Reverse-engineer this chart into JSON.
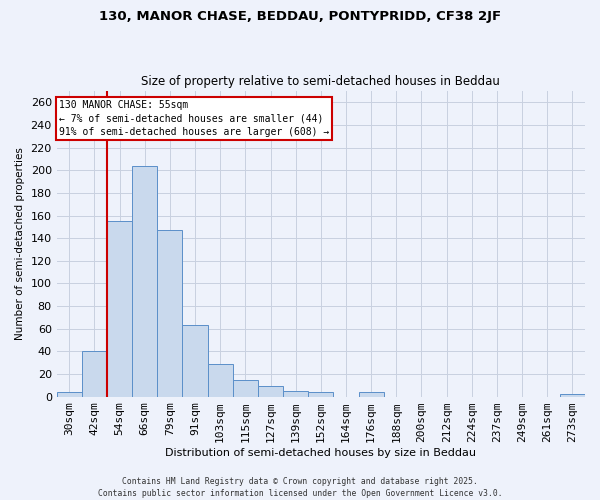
{
  "title": "130, MANOR CHASE, BEDDAU, PONTYPRIDD, CF38 2JF",
  "subtitle": "Size of property relative to semi-detached houses in Beddau",
  "xlabel": "Distribution of semi-detached houses by size in Beddau",
  "ylabel": "Number of semi-detached properties",
  "categories": [
    "30sqm",
    "42sqm",
    "54sqm",
    "66sqm",
    "79sqm",
    "91sqm",
    "103sqm",
    "115sqm",
    "127sqm",
    "139sqm",
    "152sqm",
    "164sqm",
    "176sqm",
    "188sqm",
    "200sqm",
    "212sqm",
    "224sqm",
    "237sqm",
    "249sqm",
    "261sqm",
    "273sqm"
  ],
  "values": [
    4,
    40,
    155,
    204,
    147,
    63,
    29,
    15,
    9,
    5,
    4,
    0,
    4,
    0,
    0,
    0,
    0,
    0,
    0,
    0,
    2
  ],
  "bar_color": "#c9d9ed",
  "bar_edge_color": "#5b8fc9",
  "grid_color": "#c8d0e0",
  "background_color": "#eef2fb",
  "vline_color": "#cc0000",
  "vline_x": 1.5,
  "annotation_text": "130 MANOR CHASE: 55sqm\n← 7% of semi-detached houses are smaller (44)\n91% of semi-detached houses are larger (608) →",
  "annotation_box_color": "#ffffff",
  "annotation_box_edge": "#cc0000",
  "footer_line1": "Contains HM Land Registry data © Crown copyright and database right 2025.",
  "footer_line2": "Contains public sector information licensed under the Open Government Licence v3.0.",
  "ylim": [
    0,
    270
  ],
  "yticks": [
    0,
    20,
    40,
    60,
    80,
    100,
    120,
    140,
    160,
    180,
    200,
    220,
    240,
    260
  ]
}
